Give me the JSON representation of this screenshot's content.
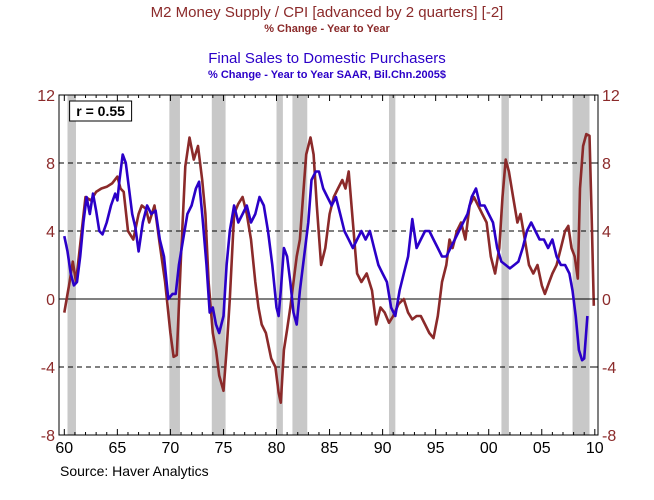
{
  "chart_data": {
    "type": "line",
    "titles": [
      {
        "text": "M2 Money Supply / CPI [advanced by 2 quarters] [-2]",
        "color": "#8b2a2a",
        "role": "main"
      },
      {
        "text": "% Change - Year to Year",
        "color": "#8b2a2a",
        "role": "sub"
      },
      {
        "text": "Final Sales to Domestic Purchasers",
        "color": "#2b00c8",
        "role": "main"
      },
      {
        "text": "% Change - Year to Year     SAAR, Bil.Chn.2005$",
        "color": "#2b00c8",
        "role": "sub"
      }
    ],
    "annotation": "r = 0.55",
    "source": "Source: Haver Analytics",
    "xlim": [
      1959.5,
      2010.3
    ],
    "ylim": [
      -8,
      12
    ],
    "x_ticks": [
      {
        "value": 1960,
        "label": "60"
      },
      {
        "value": 1965,
        "label": "65"
      },
      {
        "value": 1970,
        "label": "70"
      },
      {
        "value": 1975,
        "label": "75"
      },
      {
        "value": 1980,
        "label": "80"
      },
      {
        "value": 1985,
        "label": "85"
      },
      {
        "value": 1990,
        "label": "90"
      },
      {
        "value": 1995,
        "label": "95"
      },
      {
        "value": 2000,
        "label": "00"
      },
      {
        "value": 2005,
        "label": "05"
      },
      {
        "value": 2010,
        "label": "10"
      }
    ],
    "y_ticks": [
      {
        "value": -8,
        "label": "-8"
      },
      {
        "value": -4,
        "label": "-4"
      },
      {
        "value": 0,
        "label": "0"
      },
      {
        "value": 4,
        "label": "4"
      },
      {
        "value": 8,
        "label": "8"
      },
      {
        "value": 12,
        "label": "12"
      }
    ],
    "recessions": [
      [
        1960.3,
        1961.1
      ],
      [
        1969.9,
        1970.9
      ],
      [
        1973.9,
        1975.2
      ],
      [
        1980.0,
        1980.6
      ],
      [
        1981.5,
        1982.9
      ],
      [
        1990.6,
        1991.2
      ],
      [
        2001.2,
        2001.9
      ],
      [
        2007.9,
        2009.5
      ]
    ],
    "series": [
      {
        "name": "M2 Money Supply / CPI [advanced by 2 quarters] [-2]",
        "color": "#8b2a2a",
        "points": [
          [
            1960.0,
            -0.8
          ],
          [
            1960.5,
            1.0
          ],
          [
            1960.8,
            2.2
          ],
          [
            1961.1,
            1.0
          ],
          [
            1961.5,
            3.2
          ],
          [
            1962.0,
            6.0
          ],
          [
            1962.5,
            5.8
          ],
          [
            1963.0,
            6.3
          ],
          [
            1963.5,
            6.5
          ],
          [
            1964.0,
            6.6
          ],
          [
            1964.5,
            6.8
          ],
          [
            1965.0,
            7.2
          ],
          [
            1965.3,
            6.5
          ],
          [
            1965.6,
            6.3
          ],
          [
            1966.0,
            4.0
          ],
          [
            1966.5,
            3.5
          ],
          [
            1967.0,
            5.0
          ],
          [
            1967.3,
            5.5
          ],
          [
            1967.7,
            5.3
          ],
          [
            1968.0,
            4.5
          ],
          [
            1968.5,
            5.5
          ],
          [
            1969.0,
            3.2
          ],
          [
            1969.5,
            1.0
          ],
          [
            1970.0,
            -2.0
          ],
          [
            1970.3,
            -3.4
          ],
          [
            1970.6,
            -3.3
          ],
          [
            1971.0,
            2.5
          ],
          [
            1971.4,
            7.8
          ],
          [
            1971.8,
            9.5
          ],
          [
            1972.2,
            8.2
          ],
          [
            1972.6,
            9.0
          ],
          [
            1973.0,
            7.0
          ],
          [
            1973.3,
            5.0
          ],
          [
            1973.6,
            1.0
          ],
          [
            1974.0,
            -2.0
          ],
          [
            1974.3,
            -3.0
          ],
          [
            1974.6,
            -4.5
          ],
          [
            1975.0,
            -5.4
          ],
          [
            1975.3,
            -3.0
          ],
          [
            1975.6,
            0.0
          ],
          [
            1976.0,
            5.0
          ],
          [
            1976.4,
            5.6
          ],
          [
            1976.8,
            6.0
          ],
          [
            1977.2,
            5.0
          ],
          [
            1977.6,
            3.5
          ],
          [
            1978.0,
            1.0
          ],
          [
            1978.3,
            -0.5
          ],
          [
            1978.6,
            -1.5
          ],
          [
            1979.0,
            -2.0
          ],
          [
            1979.5,
            -3.5
          ],
          [
            1979.9,
            -4.0
          ],
          [
            1980.2,
            -5.5
          ],
          [
            1980.4,
            -6.1
          ],
          [
            1980.7,
            -3.0
          ],
          [
            1981.0,
            -1.8
          ],
          [
            1981.3,
            -0.5
          ],
          [
            1981.6,
            1.0
          ],
          [
            1981.9,
            2.5
          ],
          [
            1982.2,
            3.5
          ],
          [
            1982.5,
            6.0
          ],
          [
            1982.8,
            8.5
          ],
          [
            1983.2,
            9.5
          ],
          [
            1983.5,
            8.5
          ],
          [
            1983.8,
            5.5
          ],
          [
            1984.2,
            2.0
          ],
          [
            1984.6,
            3.0
          ],
          [
            1985.0,
            5.0
          ],
          [
            1985.4,
            6.0
          ],
          [
            1985.8,
            6.5
          ],
          [
            1986.2,
            7.0
          ],
          [
            1986.5,
            6.5
          ],
          [
            1986.8,
            7.5
          ],
          [
            1987.2,
            4.5
          ],
          [
            1987.6,
            1.5
          ],
          [
            1988.0,
            1.0
          ],
          [
            1988.5,
            1.5
          ],
          [
            1989.0,
            0.5
          ],
          [
            1989.4,
            -1.5
          ],
          [
            1989.8,
            -0.5
          ],
          [
            1990.2,
            -0.8
          ],
          [
            1990.6,
            -1.4
          ],
          [
            1991.0,
            -1.0
          ],
          [
            1991.5,
            -0.3
          ],
          [
            1992.0,
            0.0
          ],
          [
            1992.4,
            -0.8
          ],
          [
            1992.8,
            -1.2
          ],
          [
            1993.2,
            -1.0
          ],
          [
            1993.6,
            -1.0
          ],
          [
            1994.0,
            -1.5
          ],
          [
            1994.4,
            -2.0
          ],
          [
            1994.8,
            -2.3
          ],
          [
            1995.2,
            -1.0
          ],
          [
            1995.6,
            1.0
          ],
          [
            1996.0,
            2.0
          ],
          [
            1996.3,
            3.5
          ],
          [
            1996.6,
            3.0
          ],
          [
            1997.0,
            4.0
          ],
          [
            1997.4,
            4.5
          ],
          [
            1997.8,
            3.5
          ],
          [
            1998.2,
            5.5
          ],
          [
            1998.6,
            6.0
          ],
          [
            1999.0,
            5.5
          ],
          [
            1999.4,
            5.0
          ],
          [
            1999.8,
            4.5
          ],
          [
            2000.2,
            2.5
          ],
          [
            2000.6,
            1.5
          ],
          [
            2001.0,
            3.0
          ],
          [
            2001.3,
            6.0
          ],
          [
            2001.6,
            8.2
          ],
          [
            2001.9,
            7.5
          ],
          [
            2002.3,
            6.0
          ],
          [
            2002.7,
            4.5
          ],
          [
            2003.0,
            5.0
          ],
          [
            2003.4,
            3.5
          ],
          [
            2003.8,
            2.0
          ],
          [
            2004.2,
            1.5
          ],
          [
            2004.6,
            2.0
          ],
          [
            2005.0,
            0.8
          ],
          [
            2005.3,
            0.3
          ],
          [
            2005.7,
            1.0
          ],
          [
            2006.0,
            1.5
          ],
          [
            2006.4,
            2.0
          ],
          [
            2006.8,
            3.0
          ],
          [
            2007.2,
            4.0
          ],
          [
            2007.5,
            4.3
          ],
          [
            2007.8,
            3.0
          ],
          [
            2008.1,
            2.5
          ],
          [
            2008.4,
            1.2
          ],
          [
            2008.6,
            6.5
          ],
          [
            2008.9,
            9.0
          ],
          [
            2009.2,
            9.7
          ],
          [
            2009.5,
            9.6
          ],
          [
            2009.7,
            5.0
          ],
          [
            2009.9,
            -0.4
          ]
        ]
      },
      {
        "name": "Final Sales to Domestic Purchasers",
        "color": "#2b00c8",
        "points": [
          [
            1960.0,
            3.7
          ],
          [
            1960.3,
            2.8
          ],
          [
            1960.6,
            1.5
          ],
          [
            1960.9,
            0.8
          ],
          [
            1961.2,
            1.0
          ],
          [
            1961.5,
            2.5
          ],
          [
            1961.8,
            4.5
          ],
          [
            1962.1,
            6.0
          ],
          [
            1962.4,
            5.0
          ],
          [
            1962.7,
            6.2
          ],
          [
            1963.0,
            5.2
          ],
          [
            1963.3,
            4.0
          ],
          [
            1963.6,
            3.8
          ],
          [
            1964.0,
            4.5
          ],
          [
            1964.4,
            5.5
          ],
          [
            1964.8,
            6.2
          ],
          [
            1965.0,
            5.8
          ],
          [
            1965.2,
            7.0
          ],
          [
            1965.5,
            8.5
          ],
          [
            1965.8,
            8.0
          ],
          [
            1966.1,
            6.5
          ],
          [
            1966.4,
            5.0
          ],
          [
            1966.7,
            4.2
          ],
          [
            1967.0,
            2.8
          ],
          [
            1967.4,
            4.5
          ],
          [
            1967.8,
            5.5
          ],
          [
            1968.2,
            5.0
          ],
          [
            1968.6,
            5.2
          ],
          [
            1969.0,
            3.5
          ],
          [
            1969.4,
            2.5
          ],
          [
            1969.8,
            0.0
          ],
          [
            1970.2,
            0.3
          ],
          [
            1970.5,
            0.3
          ],
          [
            1970.8,
            2.0
          ],
          [
            1971.2,
            3.5
          ],
          [
            1971.6,
            5.0
          ],
          [
            1972.0,
            5.5
          ],
          [
            1972.4,
            6.5
          ],
          [
            1972.7,
            6.9
          ],
          [
            1973.0,
            5.0
          ],
          [
            1973.4,
            2.0
          ],
          [
            1973.7,
            -0.8
          ],
          [
            1974.0,
            -0.5
          ],
          [
            1974.3,
            -1.5
          ],
          [
            1974.6,
            -2.0
          ],
          [
            1975.0,
            -1.0
          ],
          [
            1975.3,
            2.0
          ],
          [
            1975.6,
            4.0
          ],
          [
            1976.0,
            5.5
          ],
          [
            1976.4,
            4.5
          ],
          [
            1976.8,
            5.0
          ],
          [
            1977.2,
            5.5
          ],
          [
            1977.6,
            4.5
          ],
          [
            1978.0,
            5.0
          ],
          [
            1978.4,
            6.0
          ],
          [
            1978.8,
            5.5
          ],
          [
            1979.2,
            4.0
          ],
          [
            1979.6,
            2.0
          ],
          [
            1980.0,
            -0.5
          ],
          [
            1980.2,
            -1.0
          ],
          [
            1980.4,
            0.5
          ],
          [
            1980.7,
            3.0
          ],
          [
            1981.0,
            2.5
          ],
          [
            1981.3,
            1.0
          ],
          [
            1981.6,
            -0.8
          ],
          [
            1981.9,
            -1.5
          ],
          [
            1982.2,
            0.5
          ],
          [
            1982.6,
            2.5
          ],
          [
            1983.0,
            4.5
          ],
          [
            1983.3,
            7.0
          ],
          [
            1983.7,
            7.5
          ],
          [
            1984.0,
            7.5
          ],
          [
            1984.4,
            6.5
          ],
          [
            1984.8,
            6.0
          ],
          [
            1985.2,
            5.5
          ],
          [
            1985.6,
            6.0
          ],
          [
            1986.0,
            5.0
          ],
          [
            1986.4,
            4.0
          ],
          [
            1986.8,
            3.5
          ],
          [
            1987.2,
            3.0
          ],
          [
            1987.6,
            3.5
          ],
          [
            1988.0,
            4.0
          ],
          [
            1988.4,
            3.5
          ],
          [
            1988.8,
            4.0
          ],
          [
            1989.2,
            3.0
          ],
          [
            1989.6,
            2.0
          ],
          [
            1990.0,
            1.5
          ],
          [
            1990.4,
            1.0
          ],
          [
            1990.8,
            -0.5
          ],
          [
            1991.2,
            -1.0
          ],
          [
            1991.6,
            0.5
          ],
          [
            1992.0,
            1.5
          ],
          [
            1992.4,
            2.5
          ],
          [
            1992.8,
            4.7
          ],
          [
            1993.2,
            3.0
          ],
          [
            1993.6,
            3.5
          ],
          [
            1994.0,
            4.0
          ],
          [
            1994.4,
            4.0
          ],
          [
            1994.8,
            3.5
          ],
          [
            1995.2,
            3.0
          ],
          [
            1995.6,
            2.5
          ],
          [
            1996.0,
            2.5
          ],
          [
            1996.4,
            3.0
          ],
          [
            1996.8,
            3.5
          ],
          [
            1997.2,
            4.0
          ],
          [
            1997.6,
            4.5
          ],
          [
            1998.0,
            5.0
          ],
          [
            1998.4,
            6.0
          ],
          [
            1998.8,
            6.5
          ],
          [
            1999.2,
            5.5
          ],
          [
            1999.6,
            5.5
          ],
          [
            2000.0,
            5.0
          ],
          [
            2000.4,
            4.5
          ],
          [
            2000.8,
            3.0
          ],
          [
            2001.2,
            2.2
          ],
          [
            2001.6,
            2.0
          ],
          [
            2002.0,
            1.8
          ],
          [
            2002.4,
            2.0
          ],
          [
            2002.8,
            2.2
          ],
          [
            2003.2,
            3.0
          ],
          [
            2003.6,
            4.0
          ],
          [
            2004.0,
            4.5
          ],
          [
            2004.4,
            4.0
          ],
          [
            2004.8,
            3.5
          ],
          [
            2005.2,
            3.5
          ],
          [
            2005.6,
            3.0
          ],
          [
            2006.0,
            3.5
          ],
          [
            2006.4,
            2.5
          ],
          [
            2006.8,
            2.0
          ],
          [
            2007.2,
            2.0
          ],
          [
            2007.6,
            1.5
          ],
          [
            2007.9,
            0.5
          ],
          [
            2008.2,
            -1.0
          ],
          [
            2008.5,
            -3.0
          ],
          [
            2008.8,
            -3.6
          ],
          [
            2009.0,
            -3.5
          ],
          [
            2009.3,
            -1.0
          ]
        ]
      }
    ]
  }
}
